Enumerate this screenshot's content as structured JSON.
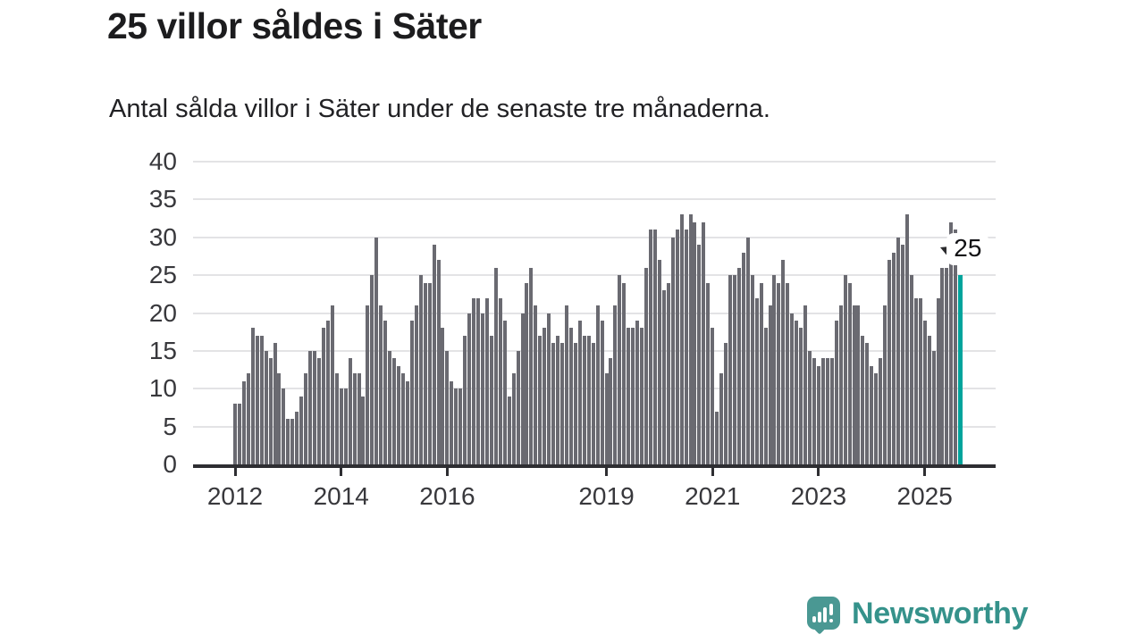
{
  "header": {
    "title": "25 villor såldes i Säter",
    "subtitle": "Antal sålda villor i Säter under de senaste tre månaderna."
  },
  "chart_data": {
    "type": "bar",
    "title": "25 villor såldes i Säter",
    "subtitle": "Antal sålda villor i Säter under de senaste tre månaderna.",
    "frequency": "monthly_rolling_3_months",
    "x_start": "2012-01",
    "x_end": "2025-09",
    "values": [
      8,
      8,
      11,
      12,
      18,
      17,
      17,
      15,
      14,
      16,
      12,
      10,
      6,
      6,
      7,
      9,
      12,
      15,
      15,
      14,
      18,
      19,
      21,
      12,
      10,
      10,
      14,
      12,
      12,
      9,
      21,
      25,
      30,
      21,
      19,
      15,
      14,
      13,
      12,
      11,
      19,
      21,
      25,
      24,
      24,
      29,
      27,
      18,
      15,
      11,
      10,
      10,
      17,
      20,
      22,
      22,
      20,
      22,
      17,
      26,
      22,
      19,
      9,
      12,
      15,
      20,
      24,
      26,
      21,
      17,
      18,
      20,
      16,
      17,
      16,
      21,
      18,
      16,
      19,
      17,
      17,
      16,
      21,
      19,
      12,
      14,
      21,
      25,
      24,
      18,
      18,
      19,
      18,
      26,
      31,
      31,
      27,
      23,
      24,
      30,
      31,
      33,
      31,
      33,
      32,
      29,
      32,
      24,
      18,
      7,
      12,
      16,
      25,
      25,
      26,
      28,
      30,
      25,
      22,
      24,
      18,
      21,
      25,
      24,
      27,
      24,
      20,
      19,
      18,
      21,
      15,
      14,
      13,
      14,
      14,
      14,
      19,
      21,
      25,
      24,
      21,
      21,
      17,
      16,
      13,
      12,
      14,
      21,
      27,
      28,
      30,
      29,
      33,
      25,
      22,
      22,
      19,
      17,
      15,
      22,
      26,
      26,
      32,
      31,
      25
    ],
    "highlight": {
      "index": 164,
      "period": "2025-09",
      "value": 25,
      "label": "25"
    },
    "ylim": [
      0,
      40
    ],
    "y_ticks": [
      "0",
      "5",
      "10",
      "15",
      "20",
      "25",
      "30",
      "35",
      "40"
    ],
    "x_tick_years": [
      "2012",
      "2014",
      "2016",
      "2019",
      "2021",
      "2023",
      "2025"
    ],
    "grid": true,
    "legend": "none",
    "colors": {
      "bar": "#6a6a71",
      "highlight": "#00a49c",
      "grid": "#e3e3e5",
      "axis": "#2e2e32",
      "labels": "#38383c"
    }
  },
  "annotation": {
    "value_label": "25"
  },
  "logo": {
    "brand": "Newsworthy",
    "icon": "newsworthy-speech-bubble-chart-icon",
    "color": "#35928b"
  }
}
